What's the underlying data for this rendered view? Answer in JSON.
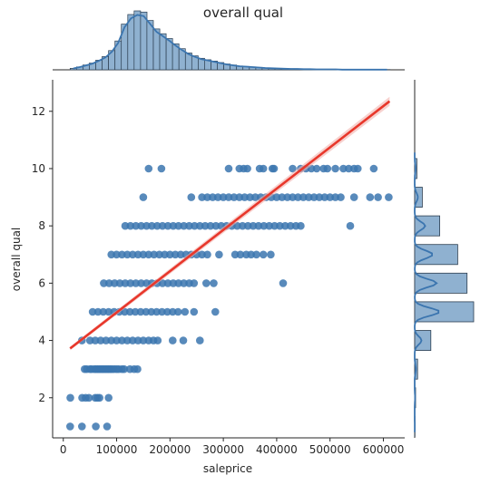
{
  "chart_data": {
    "type": "scatter",
    "title": "overall qual",
    "xlabel": "saleprice",
    "ylabel": "overall qual",
    "xlim": [
      -20000,
      640000
    ],
    "ylim": [
      0.6,
      13.1
    ],
    "xticks": [
      0,
      100000,
      200000,
      300000,
      400000,
      500000,
      600000
    ],
    "yticks": [
      2,
      4,
      6,
      8,
      10,
      12
    ],
    "grid": false,
    "colors": {
      "points": "#3b75af",
      "regression_line": "#e8372b",
      "confidence_band": "#f2b3ae",
      "histogram_fill": "#8fb1d0",
      "histogram_edge": "#2c3e50",
      "kde": "#3b75af"
    },
    "points": {
      "1": [
        [
          12789,
          1
        ],
        [
          35000,
          1
        ],
        [
          61000,
          1
        ],
        [
          82000,
          1
        ]
      ],
      "2": [
        [
          13100,
          2
        ],
        [
          35300,
          2
        ],
        [
          42000,
          2
        ],
        [
          48000,
          2
        ],
        [
          60000,
          2
        ],
        [
          64000,
          2
        ],
        [
          68000,
          2
        ],
        [
          85000,
          2
        ]
      ],
      "3": [
        [
          40000,
          3
        ],
        [
          44000,
          3
        ],
        [
          50000,
          3
        ],
        [
          53000,
          3
        ],
        [
          58000,
          3
        ],
        [
          61000,
          3
        ],
        [
          64000,
          3
        ],
        [
          67000,
          3
        ],
        [
          70000,
          3
        ],
        [
          73000,
          3
        ],
        [
          76000,
          3
        ],
        [
          79000,
          3
        ],
        [
          82000,
          3
        ],
        [
          85000,
          3
        ],
        [
          88000,
          3
        ],
        [
          91000,
          3
        ],
        [
          95000,
          3
        ],
        [
          100000,
          3
        ],
        [
          104000,
          3
        ],
        [
          110000,
          3
        ],
        [
          114000,
          3
        ],
        [
          125000,
          3
        ],
        [
          133000,
          3
        ],
        [
          139000,
          3
        ]
      ],
      "4": [
        [
          34900,
          4
        ],
        [
          50000,
          4
        ],
        [
          60000,
          4
        ],
        [
          70000,
          4
        ],
        [
          80000,
          4
        ],
        [
          90000,
          4
        ],
        [
          100000,
          4
        ],
        [
          110000,
          4
        ],
        [
          120000,
          4
        ],
        [
          130000,
          4
        ],
        [
          140000,
          4
        ],
        [
          150000,
          4
        ],
        [
          160000,
          4
        ],
        [
          169000,
          4
        ],
        [
          177000,
          4
        ],
        [
          205000,
          4
        ],
        [
          225000,
          4
        ],
        [
          256000,
          4
        ]
      ],
      "5": [
        [
          55000,
          5
        ],
        [
          65000,
          5
        ],
        [
          75000,
          5
        ],
        [
          85000,
          5
        ],
        [
          95000,
          5
        ],
        [
          105000,
          5
        ],
        [
          115000,
          5
        ],
        [
          125000,
          5
        ],
        [
          135000,
          5
        ],
        [
          145000,
          5
        ],
        [
          155000,
          5
        ],
        [
          165000,
          5
        ],
        [
          175000,
          5
        ],
        [
          185000,
          5
        ],
        [
          195000,
          5
        ],
        [
          205000,
          5
        ],
        [
          215000,
          5
        ],
        [
          228000,
          5
        ],
        [
          245000,
          5
        ],
        [
          285000,
          5
        ]
      ],
      "6": [
        [
          76000,
          6
        ],
        [
          86000,
          6
        ],
        [
          96000,
          6
        ],
        [
          106000,
          6
        ],
        [
          116000,
          6
        ],
        [
          126000,
          6
        ],
        [
          136000,
          6
        ],
        [
          146000,
          6
        ],
        [
          156000,
          6
        ],
        [
          166000,
          6
        ],
        [
          176000,
          6
        ],
        [
          186000,
          6
        ],
        [
          196000,
          6
        ],
        [
          206000,
          6
        ],
        [
          216000,
          6
        ],
        [
          226000,
          6
        ],
        [
          236000,
          6
        ],
        [
          245000,
          6
        ],
        [
          268000,
          6
        ],
        [
          282000,
          6
        ],
        [
          412000,
          6
        ]
      ],
      "7": [
        [
          90000,
          7
        ],
        [
          100000,
          7
        ],
        [
          110000,
          7
        ],
        [
          120000,
          7
        ],
        [
          130000,
          7
        ],
        [
          140000,
          7
        ],
        [
          150000,
          7
        ],
        [
          160000,
          7
        ],
        [
          170000,
          7
        ],
        [
          180000,
          7
        ],
        [
          190000,
          7
        ],
        [
          200000,
          7
        ],
        [
          210000,
          7
        ],
        [
          220000,
          7
        ],
        [
          230000,
          7
        ],
        [
          240000,
          7
        ],
        [
          250000,
          7
        ],
        [
          260000,
          7
        ],
        [
          270000,
          7
        ],
        [
          292000,
          7
        ],
        [
          322000,
          7
        ],
        [
          332000,
          7
        ],
        [
          343000,
          7
        ],
        [
          352000,
          7
        ],
        [
          362000,
          7
        ],
        [
          375000,
          7
        ],
        [
          389000,
          7
        ]
      ],
      "8": [
        [
          116000,
          8
        ],
        [
          126000,
          8
        ],
        [
          136000,
          8
        ],
        [
          146000,
          8
        ],
        [
          156000,
          8
        ],
        [
          166000,
          8
        ],
        [
          176000,
          8
        ],
        [
          186000,
          8
        ],
        [
          196000,
          8
        ],
        [
          206000,
          8
        ],
        [
          216000,
          8
        ],
        [
          226000,
          8
        ],
        [
          236000,
          8
        ],
        [
          246000,
          8
        ],
        [
          256000,
          8
        ],
        [
          266000,
          8
        ],
        [
          276000,
          8
        ],
        [
          286000,
          8
        ],
        [
          296000,
          8
        ],
        [
          306000,
          8
        ],
        [
          316000,
          8
        ],
        [
          326000,
          8
        ],
        [
          336000,
          8
        ],
        [
          346000,
          8
        ],
        [
          356000,
          8
        ],
        [
          366000,
          8
        ],
        [
          376000,
          8
        ],
        [
          386000,
          8
        ],
        [
          396000,
          8
        ],
        [
          406000,
          8
        ],
        [
          416000,
          8
        ],
        [
          426000,
          8
        ],
        [
          436000,
          8
        ],
        [
          445000,
          8
        ],
        [
          538000,
          8
        ]
      ],
      "9": [
        [
          150000,
          9
        ],
        [
          240000,
          9
        ],
        [
          260000,
          9
        ],
        [
          270000,
          9
        ],
        [
          280000,
          9
        ],
        [
          290000,
          9
        ],
        [
          300000,
          9
        ],
        [
          310000,
          9
        ],
        [
          320000,
          9
        ],
        [
          330000,
          9
        ],
        [
          340000,
          9
        ],
        [
          350000,
          9
        ],
        [
          360000,
          9
        ],
        [
          370000,
          9
        ],
        [
          380000,
          9
        ],
        [
          390000,
          9
        ],
        [
          400000,
          9
        ],
        [
          410000,
          9
        ],
        [
          420000,
          9
        ],
        [
          430000,
          9
        ],
        [
          440000,
          9
        ],
        [
          450000,
          9
        ],
        [
          460000,
          9
        ],
        [
          470000,
          9
        ],
        [
          480000,
          9
        ],
        [
          490000,
          9
        ],
        [
          500000,
          9
        ],
        [
          510000,
          9
        ],
        [
          520000,
          9
        ],
        [
          545000,
          9
        ],
        [
          575000,
          9
        ],
        [
          590000,
          9
        ],
        [
          610000,
          9
        ]
      ],
      "10": [
        [
          160000,
          10
        ],
        [
          184000,
          10
        ],
        [
          310000,
          10
        ],
        [
          330000,
          10
        ],
        [
          338000,
          10
        ],
        [
          345000,
          10
        ],
        [
          368000,
          10
        ],
        [
          375000,
          10
        ],
        [
          392000,
          10
        ],
        [
          395000,
          10
        ],
        [
          430000,
          10
        ],
        [
          445000,
          10
        ],
        [
          455000,
          10
        ],
        [
          465000,
          10
        ],
        [
          475000,
          10
        ],
        [
          488000,
          10
        ],
        [
          495000,
          10
        ],
        [
          510000,
          10
        ],
        [
          525000,
          10
        ],
        [
          535000,
          10
        ],
        [
          545000,
          10
        ],
        [
          552000,
          10
        ],
        [
          582000,
          10
        ]
      ]
    },
    "regression": {
      "x0": 12789,
      "y0": 3.72,
      "x1": 611657,
      "y1": 12.35
    },
    "top_histogram": {
      "bin_start": 12789,
      "bin_width": 12000,
      "counts": [
        6,
        12,
        20,
        28,
        40,
        55,
        80,
        120,
        190,
        230,
        245,
        240,
        205,
        170,
        150,
        130,
        108,
        88,
        70,
        58,
        48,
        42,
        36,
        30,
        24,
        20,
        16,
        14,
        12,
        10,
        8,
        7,
        6,
        5,
        4,
        4,
        3,
        3,
        2,
        2,
        2,
        2,
        1,
        1,
        1,
        1,
        1,
        1,
        1,
        1
      ]
    },
    "right_histogram": {
      "levels": [
        1,
        2,
        3,
        4,
        5,
        6,
        7,
        8,
        9,
        10
      ],
      "counts": [
        4,
        13,
        40,
        226,
        825,
        732,
        602,
        350,
        107,
        31
      ]
    }
  }
}
